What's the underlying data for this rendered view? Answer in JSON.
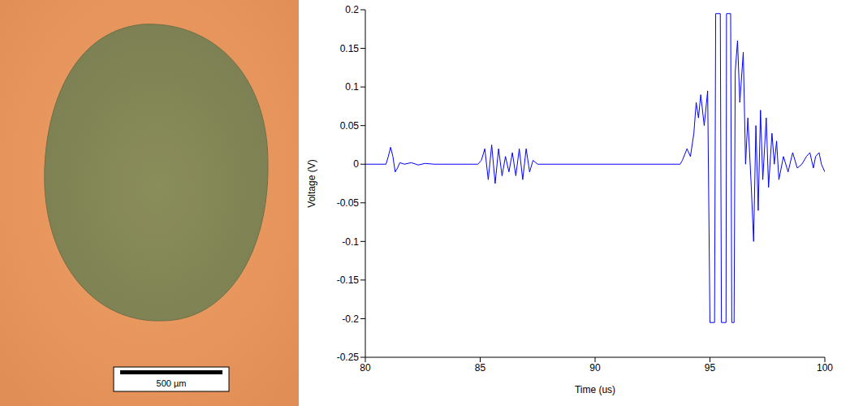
{
  "micrograph": {
    "scale_bar": "500 µm"
  },
  "chart_data": {
    "type": "line",
    "x_label": "Time (us)",
    "y_label": "Voltage (V)",
    "color": "#0000ff",
    "xlim": [
      80,
      100
    ],
    "xticks": [
      80,
      85,
      90,
      95,
      100
    ],
    "ylim": [
      -0.25,
      0.2
    ],
    "yticks": [
      -0.25,
      -0.2,
      -0.15,
      -0.1,
      -0.05,
      0,
      0.05,
      0.1,
      0.15,
      0.2
    ],
    "grid": false,
    "x": [
      80,
      80.9,
      81,
      81.1,
      81.2,
      81.3,
      81.4,
      81.5,
      81.7,
      82,
      82.3,
      82.6,
      83,
      84.9,
      85.05,
      85.2,
      85.35,
      85.5,
      85.65,
      85.8,
      85.95,
      86.1,
      86.25,
      86.4,
      86.55,
      86.7,
      86.85,
      87,
      87.15,
      87.3,
      87.5,
      93.7,
      93.8,
      94,
      94.15,
      94.3,
      94.4,
      94.5,
      94.6,
      94.75,
      94.9,
      95,
      95.2,
      95.25,
      95.45,
      95.5,
      95.7,
      95.72,
      95.9,
      95.95,
      96.05,
      96.1,
      96.2,
      96.3,
      96.45,
      96.55,
      96.65,
      96.8,
      96.9,
      97,
      97.1,
      97.2,
      97.3,
      97.45,
      97.55,
      97.7,
      97.8,
      97.9,
      98,
      98.2,
      98.4,
      98.6,
      98.8,
      99,
      99.2,
      99.35,
      99.5,
      99.6,
      99.75,
      99.85,
      100
    ],
    "values": [
      0,
      0,
      0.01,
      0.022,
      0.01,
      -0.01,
      -0.005,
      0.002,
      0,
      0.002,
      -0.001,
      0.001,
      0,
      0,
      0.005,
      0.02,
      -0.02,
      0.025,
      -0.025,
      0.02,
      -0.015,
      0.01,
      -0.01,
      0.015,
      -0.015,
      0.02,
      -0.02,
      0.02,
      -0.01,
      0.005,
      0,
      0,
      0.005,
      0.02,
      0.01,
      0.04,
      0.08,
      0.06,
      0.09,
      0.05,
      0.095,
      -0.205,
      -0.205,
      0.195,
      0.195,
      -0.205,
      -0.205,
      0.195,
      0.195,
      -0.205,
      -0.205,
      0.12,
      0.16,
      0.08,
      0.145,
      0,
      0.06,
      -0.03,
      -0.1,
      0.05,
      -0.06,
      0.07,
      -0.02,
      0.06,
      -0.03,
      0.04,
      0,
      0.03,
      -0.02,
      0.01,
      -0.01,
      0.015,
      -0.005,
      0,
      0.01,
      0.015,
      -0.005,
      0.01,
      0.015,
      0,
      -0.01
    ]
  }
}
